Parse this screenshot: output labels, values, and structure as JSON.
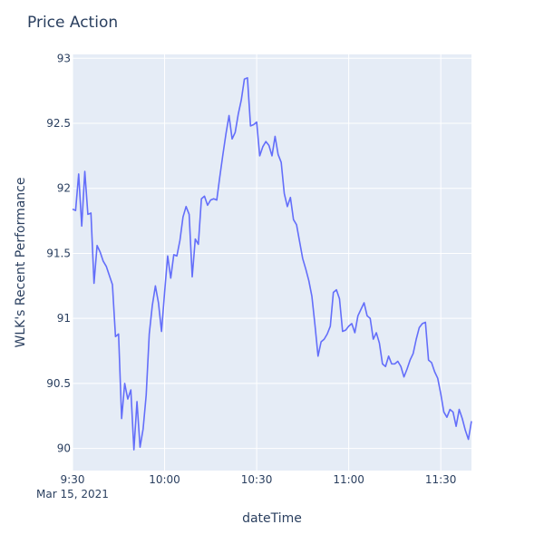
{
  "chart_data": {
    "type": "line",
    "title": "Price Action",
    "xlabel": "dateTime",
    "ylabel": "WLK's Recent Performance",
    "date_label": "Mar 15, 2021",
    "x_tick_labels": [
      "9:30",
      "10:00",
      "10:30",
      "11:00",
      "11:30"
    ],
    "y_tick_labels": [
      "90",
      "90.5",
      "91",
      "91.5",
      "92",
      "92.5",
      "93"
    ],
    "y_ticks": [
      90,
      90.5,
      91,
      91.5,
      92,
      92.5,
      93
    ],
    "ylim": [
      89.83,
      93.03
    ],
    "xlim": [
      "09:30",
      "11:40"
    ],
    "grid": true,
    "background_color": "#e5ecf6",
    "line_color": "#636efa",
    "series": [
      {
        "x": [
          "09:30",
          "09:31",
          "09:32",
          "09:33",
          "09:34",
          "09:35",
          "09:36",
          "09:37",
          "09:38",
          "09:39",
          "09:40",
          "09:41",
          "09:42",
          "09:43",
          "09:44",
          "09:45",
          "09:46",
          "09:47",
          "09:48",
          "09:49",
          "09:50",
          "09:51",
          "09:52",
          "09:53",
          "09:54",
          "09:55",
          "09:56",
          "09:57",
          "09:58",
          "09:59",
          "10:00",
          "10:01",
          "10:02",
          "10:03",
          "10:04",
          "10:05",
          "10:06",
          "10:07",
          "10:08",
          "10:09",
          "10:10",
          "10:11",
          "10:12",
          "10:13",
          "10:14",
          "10:15",
          "10:16",
          "10:17",
          "10:18",
          "10:19",
          "10:20",
          "10:21",
          "10:22",
          "10:23",
          "10:24",
          "10:25",
          "10:26",
          "10:27",
          "10:28",
          "10:29",
          "10:30",
          "10:31",
          "10:32",
          "10:33",
          "10:34",
          "10:35",
          "10:36",
          "10:37",
          "10:38",
          "10:39",
          "10:40",
          "10:41",
          "10:42",
          "10:43",
          "10:44",
          "10:45",
          "10:46",
          "10:47",
          "10:48",
          "10:49",
          "10:50",
          "10:51",
          "10:52",
          "10:53",
          "10:54",
          "10:55",
          "10:56",
          "10:57",
          "10:58",
          "10:59",
          "11:00",
          "11:01",
          "11:02",
          "11:03",
          "11:04",
          "11:05",
          "11:06",
          "11:07",
          "11:08",
          "11:09",
          "11:10",
          "11:11",
          "11:12",
          "11:13",
          "11:14",
          "11:15",
          "11:16",
          "11:17",
          "11:18",
          "11:19",
          "11:20",
          "11:21",
          "11:22",
          "11:23",
          "11:24",
          "11:25",
          "11:26",
          "11:27",
          "11:28",
          "11:29",
          "11:30",
          "11:31",
          "11:32",
          "11:33",
          "11:34",
          "11:35",
          "11:36",
          "11:37",
          "11:38",
          "11:39",
          "11:40"
        ],
        "y": [
          91.84,
          91.83,
          92.11,
          91.71,
          92.13,
          91.8,
          91.81,
          91.27,
          91.56,
          91.51,
          91.44,
          91.4,
          91.33,
          91.26,
          90.86,
          90.88,
          90.23,
          90.5,
          90.38,
          90.45,
          89.99,
          90.36,
          90.01,
          90.15,
          90.41,
          90.88,
          91.1,
          91.25,
          91.12,
          90.9,
          91.2,
          91.48,
          91.31,
          91.49,
          91.48,
          91.6,
          91.78,
          91.86,
          91.8,
          91.32,
          91.61,
          91.57,
          91.92,
          91.94,
          91.87,
          91.91,
          91.92,
          91.91,
          92.09,
          92.26,
          92.42,
          92.56,
          92.38,
          92.43,
          92.57,
          92.68,
          92.84,
          92.85,
          92.48,
          92.49,
          92.51,
          92.25,
          92.32,
          92.36,
          92.33,
          92.25,
          92.4,
          92.26,
          92.2,
          91.96,
          91.86,
          91.93,
          91.76,
          91.72,
          91.59,
          91.46,
          91.38,
          91.29,
          91.17,
          90.95,
          90.71,
          90.82,
          90.84,
          90.88,
          90.94,
          91.2,
          91.22,
          91.15,
          90.9,
          90.91,
          90.94,
          90.96,
          90.89,
          91.02,
          91.07,
          91.12,
          91.02,
          91.0,
          90.84,
          90.89,
          90.81,
          90.65,
          90.63,
          90.71,
          90.65,
          90.65,
          90.67,
          90.63,
          90.55,
          90.61,
          90.68,
          90.73,
          90.84,
          90.93,
          90.96,
          90.97,
          90.68,
          90.66,
          90.59,
          90.54,
          90.42,
          90.28,
          90.24,
          90.3,
          90.28,
          90.17,
          90.3,
          90.23,
          90.14,
          90.07,
          90.21
        ]
      }
    ]
  }
}
